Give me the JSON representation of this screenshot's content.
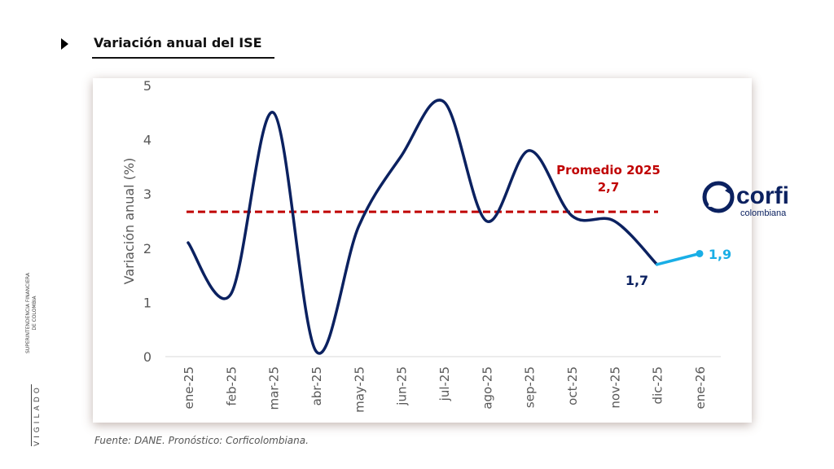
{
  "title": "Variación anual del ISE",
  "source": "Fuente: DANE. Pronóstico: Corficolombiana.",
  "side": {
    "vigilado": "VIGILADO",
    "entity_line1": "SUPERINTENDENCIA FINANCIERA",
    "entity_line2": "DE COLOMBIA"
  },
  "logo": {
    "name": "corfi",
    "sub": "colombiana"
  },
  "colors": {
    "actual": "#0b2160",
    "forecast": "#19aee6",
    "average": "#c00000"
  },
  "chart_data": {
    "type": "line",
    "ylabel": "Variación anual (%)",
    "ylim": [
      0,
      5
    ],
    "yticks": [
      0,
      1,
      2,
      3,
      4,
      5
    ],
    "categories": [
      "ene-25",
      "feb-25",
      "mar-25",
      "abr-25",
      "may-25",
      "jun-25",
      "jul-25",
      "ago-25",
      "sep-25",
      "oct-25",
      "nov-25",
      "dic-25",
      "ene-26"
    ],
    "series": [
      {
        "kind": "actual",
        "values": [
          2.1,
          1.15,
          4.5,
          0.1,
          2.4,
          3.7,
          4.7,
          2.5,
          3.8,
          2.6,
          2.5,
          1.7,
          null
        ]
      },
      {
        "kind": "forecast",
        "values": [
          null,
          null,
          null,
          null,
          null,
          null,
          null,
          null,
          null,
          null,
          null,
          1.7,
          1.9
        ]
      }
    ],
    "average": {
      "label": "Promedio 2025",
      "value_label": "2,7",
      "value": 2.67
    },
    "data_labels": [
      {
        "category": "dic-25",
        "text": "1,7"
      },
      {
        "category": "ene-26",
        "text": "1,9"
      }
    ],
    "grid": false,
    "legend": "none"
  }
}
